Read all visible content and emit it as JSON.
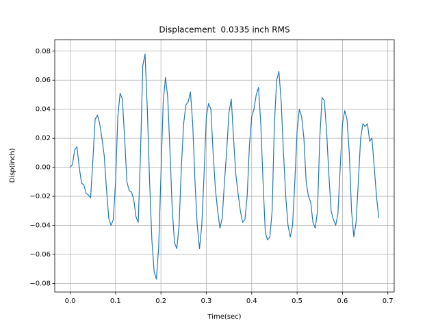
{
  "chart_data": {
    "type": "line",
    "title": "Displacement  0.0335 inch RMS",
    "x_label": "Time(sec)",
    "y_label": "Disp(inch)",
    "grid": true,
    "series": [
      {
        "color": "#1f77b4",
        "x": [
          0,
          0.005,
          0.01,
          0.015,
          0.02,
          0.025,
          0.03,
          0.035,
          0.04,
          0.045,
          0.05,
          0.055,
          0.06,
          0.065,
          0.07,
          0.075,
          0.08,
          0.085,
          0.09,
          0.095,
          0.1,
          0.105,
          0.11,
          0.115,
          0.12,
          0.125,
          0.13,
          0.135,
          0.14,
          0.145,
          0.15,
          0.155,
          0.16,
          0.165,
          0.17,
          0.175,
          0.18,
          0.185,
          0.19,
          0.195,
          0.2,
          0.205,
          0.21,
          0.215,
          0.22,
          0.225,
          0.23,
          0.235,
          0.24,
          0.245,
          0.25,
          0.255,
          0.26,
          0.265,
          0.27,
          0.275,
          0.28,
          0.285,
          0.29,
          0.295,
          0.3,
          0.305,
          0.31,
          0.315,
          0.32,
          0.325,
          0.33,
          0.335,
          0.34,
          0.345,
          0.35,
          0.355,
          0.36,
          0.365,
          0.37,
          0.375,
          0.38,
          0.385,
          0.39,
          0.395,
          0.4,
          0.405,
          0.41,
          0.415,
          0.42,
          0.425,
          0.43,
          0.435,
          0.44,
          0.445,
          0.45,
          0.455,
          0.46,
          0.465,
          0.47,
          0.475,
          0.48,
          0.485,
          0.49,
          0.495,
          0.5,
          0.505,
          0.51,
          0.515,
          0.52,
          0.525,
          0.53,
          0.535,
          0.54,
          0.545,
          0.55,
          0.555,
          0.56,
          0.565,
          0.57,
          0.575,
          0.58,
          0.585,
          0.59,
          0.595,
          0.6,
          0.605,
          0.61,
          0.615,
          0.62,
          0.625,
          0.63,
          0.635,
          0.64,
          0.645,
          0.65,
          0.655,
          0.66,
          0.665,
          0.67,
          0.675,
          0.68
        ],
        "values": [
          0.0,
          0.002,
          0.012,
          0.014,
          0.0,
          -0.011,
          -0.012,
          -0.018,
          -0.019,
          -0.021,
          0.005,
          0.033,
          0.036,
          0.03,
          0.02,
          0.008,
          -0.015,
          -0.035,
          -0.04,
          -0.036,
          -0.01,
          0.035,
          0.051,
          0.047,
          0.02,
          -0.01,
          -0.016,
          -0.017,
          -0.022,
          -0.034,
          -0.038,
          0.01,
          0.07,
          0.078,
          0.04,
          -0.01,
          -0.05,
          -0.072,
          -0.077,
          -0.055,
          -0.005,
          0.045,
          0.062,
          0.048,
          0.01,
          -0.03,
          -0.052,
          -0.056,
          -0.04,
          0.0,
          0.03,
          0.043,
          0.045,
          0.052,
          0.03,
          -0.01,
          -0.04,
          -0.056,
          -0.04,
          -0.005,
          0.035,
          0.044,
          0.04,
          0.01,
          -0.015,
          -0.03,
          -0.042,
          -0.035,
          -0.01,
          0.012,
          0.038,
          0.047,
          0.02,
          -0.005,
          -0.018,
          -0.03,
          -0.038,
          -0.036,
          -0.02,
          0.015,
          0.035,
          0.04,
          0.05,
          0.055,
          0.03,
          -0.01,
          -0.045,
          -0.05,
          -0.048,
          -0.03,
          0.03,
          0.06,
          0.066,
          0.045,
          0.01,
          -0.02,
          -0.04,
          -0.048,
          -0.04,
          -0.01,
          0.025,
          0.04,
          0.035,
          0.02,
          -0.01,
          -0.02,
          -0.024,
          -0.038,
          -0.042,
          -0.03,
          0.02,
          0.048,
          0.046,
          0.025,
          -0.005,
          -0.03,
          -0.036,
          -0.04,
          -0.032,
          0.0,
          0.03,
          0.039,
          0.033,
          0.01,
          -0.03,
          -0.048,
          -0.038,
          -0.01,
          0.02,
          0.03,
          0.028,
          0.03,
          0.018,
          0.02,
          0.0,
          -0.02,
          -0.035
        ]
      }
    ],
    "xlim": [
      -0.034,
      0.714
    ],
    "ylim": [
      -0.0859,
      0.0879
    ],
    "xticks": [
      {
        "value": 0,
        "label": "0.0"
      },
      0.1,
      0.2,
      0.3,
      0.4,
      0.5,
      0.6,
      0.7
    ],
    "yticks": [
      {
        "value": -0.08,
        "label": "−0.08"
      },
      {
        "value": -0.06,
        "label": "−0.06"
      },
      {
        "value": -0.04,
        "label": "−0.04"
      },
      {
        "value": -0.02,
        "label": "−0.02"
      },
      {
        "value": 0,
        "label": "0.00"
      },
      0.02,
      0.04,
      0.06,
      0.08
    ]
  }
}
